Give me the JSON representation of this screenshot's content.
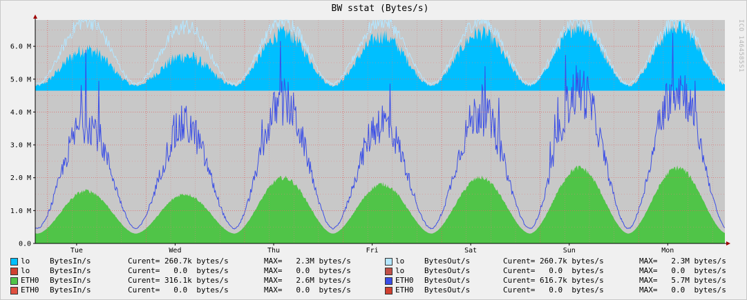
{
  "chart_data": {
    "type": "area",
    "title": "BW sstat (Bytes/s)",
    "watermark": "ICO 1464585S1",
    "yticks": [
      {
        "v": 0,
        "label": "0.0"
      },
      {
        "v": 1000000,
        "label": "1.0 M"
      },
      {
        "v": 2000000,
        "label": "2.0 M"
      },
      {
        "v": 3000000,
        "label": "3.0 M"
      },
      {
        "v": 4000000,
        "label": "4.0 M"
      },
      {
        "v": 5000000,
        "label": "5.0 M"
      },
      {
        "v": 6000000,
        "label": "6.0 M"
      }
    ],
    "ylim": [
      0,
      6800000
    ],
    "x_days": [
      "Tue",
      "Wed",
      "Thu",
      "Fri",
      "Sat",
      "Sun",
      "Mon"
    ],
    "x_range_days": [
      0,
      7
    ],
    "series": [
      {
        "name": "lo BytesIn/s",
        "color": "#00bfff",
        "style": "area",
        "base": 4650000,
        "trough": 4800000,
        "peaks": [
          5900000,
          5700000,
          6400000,
          6300000,
          6400000,
          6600000,
          6600000
        ]
      },
      {
        "name": "lo BytesOut/s",
        "color": "#b4e6ff",
        "style": "line",
        "base": 0,
        "trough": 4850000,
        "peaks": [
          6800000,
          6600000,
          6800000,
          6800000,
          6800000,
          6800000,
          6800000
        ]
      },
      {
        "name": "ETH0 BytesIn/s",
        "color": "#50c448",
        "style": "area",
        "base": 0,
        "trough": 300000,
        "peaks": [
          1600000,
          1500000,
          2000000,
          1800000,
          2000000,
          2300000,
          2300000
        ]
      },
      {
        "name": "ETH0 BytesOut/s",
        "color": "#3a4ee6",
        "style": "line",
        "base": 0,
        "trough": 450000,
        "peaks": [
          3700000,
          3600000,
          4300000,
          3700000,
          4000000,
          4700000,
          4800000
        ]
      }
    ]
  },
  "legend": [
    {
      "color": "#00bfff",
      "iface": "lo",
      "metric": "BytesIn/s",
      "current": "Curent= 260.7k bytes/s",
      "max": "MAX=   2.3M bytes/s"
    },
    {
      "color": "#b4e6ff",
      "iface": "lo",
      "metric": "BytesOut/s",
      "current": "Curent= 260.7k bytes/s",
      "max": "MAX=   2.3M bytes/s"
    },
    {
      "color": "#d04030",
      "iface": "lo",
      "metric": "BytesIn/s",
      "current": "Curent=   0.0  bytes/s",
      "max": "MAX=   0.0  bytes/s"
    },
    {
      "color": "#c05048",
      "iface": "lo",
      "metric": "BytesOut/s",
      "current": "Curent=   0.0  bytes/s",
      "max": "MAX=   0.0  bytes/s"
    },
    {
      "color": "#50c448",
      "iface": "ETH0",
      "metric": "BytesIn/s",
      "current": "Curent= 316.1k bytes/s",
      "max": "MAX=   2.6M bytes/s"
    },
    {
      "color": "#3a4ee6",
      "iface": "ETH0",
      "metric": "BytesOut/s",
      "current": "Curent= 616.7k bytes/s",
      "max": "MAX=   5.7M bytes/s"
    },
    {
      "color": "#e05040",
      "iface": "ETH0",
      "metric": "BytesIn/s",
      "current": "Curent=   0.0  bytes/s",
      "max": "MAX=   0.0  bytes/s"
    },
    {
      "color": "#d04030",
      "iface": "ETH0",
      "metric": "BytesOut/s",
      "current": "Curent=   0.0  bytes/s",
      "max": "MAX=   0.0  bytes/s"
    }
  ]
}
